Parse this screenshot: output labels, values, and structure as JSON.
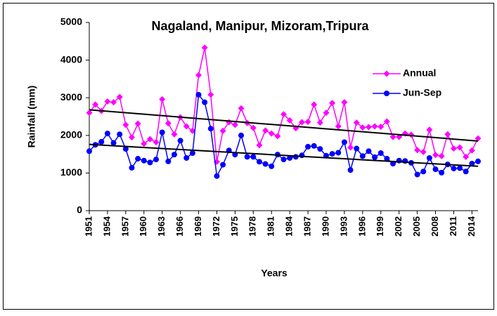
{
  "chart_data": {
    "type": "line",
    "title": "Nagaland, Manipur, Mizoram,Tripura",
    "x_label": "Years",
    "y_label": "Rainfall (mm)",
    "x": [
      1951,
      1952,
      1953,
      1954,
      1955,
      1956,
      1957,
      1958,
      1959,
      1960,
      1961,
      1962,
      1963,
      1964,
      1965,
      1966,
      1967,
      1968,
      1969,
      1970,
      1971,
      1972,
      1973,
      1974,
      1975,
      1976,
      1977,
      1978,
      1979,
      1980,
      1981,
      1982,
      1983,
      1984,
      1985,
      1986,
      1987,
      1988,
      1989,
      1990,
      1991,
      1992,
      1993,
      1994,
      1995,
      1996,
      1997,
      1998,
      1999,
      2000,
      2001,
      2002,
      2003,
      2004,
      2005,
      2006,
      2007,
      2008,
      2009,
      2010,
      2011,
      2012,
      2013,
      2014,
      2015
    ],
    "series": [
      {
        "name": "Annual",
        "color": "#ff00ff",
        "marker": "diamond",
        "values": [
          2600,
          2820,
          2650,
          2900,
          2880,
          3020,
          2280,
          1950,
          2310,
          1780,
          1900,
          1820,
          2960,
          2320,
          2030,
          2480,
          2240,
          2120,
          3600,
          4330,
          3080,
          1300,
          2120,
          2350,
          2280,
          2720,
          2330,
          2200,
          1740,
          2130,
          2050,
          1980,
          2560,
          2400,
          2190,
          2350,
          2360,
          2820,
          2340,
          2600,
          2860,
          2240,
          2880,
          1680,
          2340,
          2210,
          2220,
          2240,
          2230,
          2370,
          1960,
          1960,
          2050,
          2020,
          1610,
          1560,
          2150,
          1480,
          1450,
          2030,
          1650,
          1680,
          1430,
          1600,
          1920
        ]
      },
      {
        "name": "Jun-Sep",
        "color": "#0000ff",
        "marker": "circle",
        "values": [
          1580,
          1750,
          1830,
          2050,
          1800,
          2030,
          1640,
          1140,
          1380,
          1330,
          1280,
          1360,
          2080,
          1310,
          1490,
          1860,
          1400,
          1530,
          3080,
          2880,
          2180,
          920,
          1220,
          1600,
          1490,
          2000,
          1430,
          1430,
          1300,
          1240,
          1180,
          1490,
          1360,
          1400,
          1430,
          1470,
          1700,
          1720,
          1640,
          1460,
          1510,
          1540,
          1820,
          1080,
          1650,
          1450,
          1580,
          1420,
          1530,
          1380,
          1250,
          1330,
          1320,
          1270,
          960,
          1040,
          1400,
          1100,
          1010,
          1230,
          1120,
          1130,
          1040,
          1250,
          1310
        ]
      }
    ],
    "trend_lines": [
      {
        "color": "#000000",
        "x": [
          1951,
          2015
        ],
        "values": [
          2680,
          1850
        ]
      },
      {
        "color": "#000000",
        "x": [
          1951,
          2015
        ],
        "values": [
          1760,
          1180
        ]
      }
    ],
    "xlim": [
      1951,
      2015
    ],
    "xticks": [
      1951,
      1954,
      1957,
      1960,
      1963,
      1966,
      1969,
      1972,
      1975,
      1978,
      1981,
      1984,
      1987,
      1990,
      1993,
      1996,
      1999,
      2002,
      2005,
      2008,
      2011,
      2014
    ],
    "ylim": [
      0,
      5000
    ],
    "yticks": [
      0,
      1000,
      2000,
      3000,
      4000,
      5000
    ],
    "grid": false,
    "legend": "upper right"
  }
}
